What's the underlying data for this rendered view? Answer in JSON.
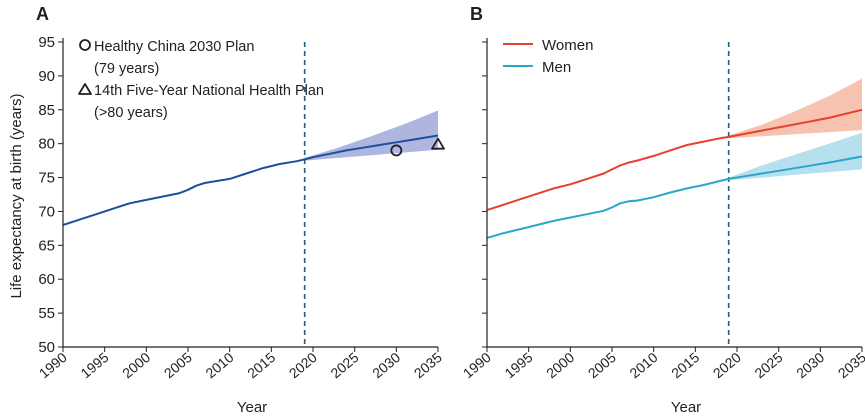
{
  "figure": {
    "ylabel": "Life expectancy at birth (years)",
    "xlabel": "Year",
    "axis_color": "#231f20",
    "vline_color": "#2b5a78"
  },
  "chart_data": [
    {
      "panel_label": "A",
      "type": "line",
      "xlabel": "Year",
      "ylabel": "Life expectancy at birth (years)",
      "xlim": [
        1990,
        2035
      ],
      "ylim": [
        50,
        95
      ],
      "xticks": [
        "1990",
        "1995",
        "2000",
        "2005",
        "2010",
        "2015",
        "2020",
        "2025",
        "2030",
        "2035"
      ],
      "yticks": [
        "50",
        "55",
        "60",
        "65",
        "70",
        "75",
        "80",
        "85",
        "90",
        "95"
      ],
      "grid": false,
      "projection_start": 2019,
      "series": [
        {
          "color": "#1f4e9c",
          "band_color": "#aeb6e0",
          "x": [
            1990,
            1992,
            1994,
            1996,
            1998,
            2000,
            2002,
            2004,
            2005,
            2006,
            2007,
            2008,
            2009,
            2010,
            2012,
            2014,
            2016,
            2018,
            2019,
            2020,
            2022,
            2024,
            2026,
            2028,
            2030,
            2032,
            2035
          ],
          "y": [
            68.0,
            68.8,
            69.6,
            70.4,
            71.2,
            71.7,
            72.2,
            72.7,
            73.2,
            73.8,
            74.2,
            74.4,
            74.6,
            74.8,
            75.6,
            76.4,
            77.0,
            77.4,
            77.7,
            78.0,
            78.5,
            79.0,
            79.4,
            79.8,
            80.2,
            80.6,
            81.2
          ],
          "band_x": [
            2019,
            2023,
            2027,
            2031,
            2035
          ],
          "band_lower": [
            77.5,
            77.9,
            78.3,
            78.7,
            79.1
          ],
          "band_upper": [
            77.9,
            79.4,
            81.1,
            82.9,
            84.9
          ]
        }
      ],
      "markers": [
        {
          "symbol": "circle",
          "x": 2030,
          "y": 79,
          "label": "Healthy China 2030 Plan",
          "sublabel": "(79 years)"
        },
        {
          "symbol": "triangle",
          "x": 2035,
          "y": 80,
          "label": "14th Five-Year National Health Plan",
          "sublabel": "(>80 years)"
        }
      ]
    },
    {
      "panel_label": "B",
      "type": "line",
      "xlabel": "Year",
      "ylabel": "",
      "xlim": [
        1990,
        2035
      ],
      "ylim": [
        50,
        95
      ],
      "xticks": [
        "1990",
        "1995",
        "2000",
        "2005",
        "2010",
        "2015",
        "2020",
        "2025",
        "2030",
        "2035"
      ],
      "grid": false,
      "projection_start": 2019,
      "legend": "top-left",
      "series": [
        {
          "name": "Women",
          "color": "#e8402e",
          "band_color": "#f7c3b0",
          "x": [
            1990,
            1992,
            1994,
            1996,
            1998,
            2000,
            2002,
            2004,
            2005,
            2006,
            2007,
            2008,
            2010,
            2012,
            2014,
            2016,
            2018,
            2019,
            2022,
            2025,
            2028,
            2031,
            2035
          ],
          "y": [
            70.2,
            71.0,
            71.8,
            72.6,
            73.4,
            74.0,
            74.8,
            75.6,
            76.2,
            76.8,
            77.2,
            77.5,
            78.2,
            79.0,
            79.8,
            80.3,
            80.8,
            81.0,
            81.7,
            82.4,
            83.1,
            83.8,
            85.0
          ],
          "band_x": [
            2019,
            2023,
            2027,
            2031,
            2035
          ],
          "band_lower": [
            80.8,
            81.1,
            81.4,
            81.7,
            82.0
          ],
          "band_upper": [
            81.2,
            82.8,
            84.8,
            87.0,
            89.6
          ]
        },
        {
          "name": "Men",
          "color": "#2aa6cc",
          "band_color": "#b7e0ef",
          "x": [
            1990,
            1992,
            1994,
            1996,
            1998,
            2000,
            2002,
            2004,
            2005,
            2006,
            2007,
            2008,
            2010,
            2012,
            2014,
            2016,
            2018,
            2019,
            2022,
            2025,
            2028,
            2031,
            2035
          ],
          "y": [
            66.1,
            66.8,
            67.4,
            68.0,
            68.6,
            69.1,
            69.6,
            70.1,
            70.6,
            71.2,
            71.5,
            71.6,
            72.1,
            72.8,
            73.4,
            73.9,
            74.5,
            74.8,
            75.4,
            76.0,
            76.6,
            77.2,
            78.1
          ],
          "band_x": [
            2019,
            2023,
            2027,
            2031,
            2035
          ],
          "band_lower": [
            74.6,
            75.0,
            75.4,
            75.8,
            76.2
          ],
          "band_upper": [
            75.0,
            76.8,
            78.4,
            80.0,
            81.6
          ]
        }
      ]
    }
  ]
}
